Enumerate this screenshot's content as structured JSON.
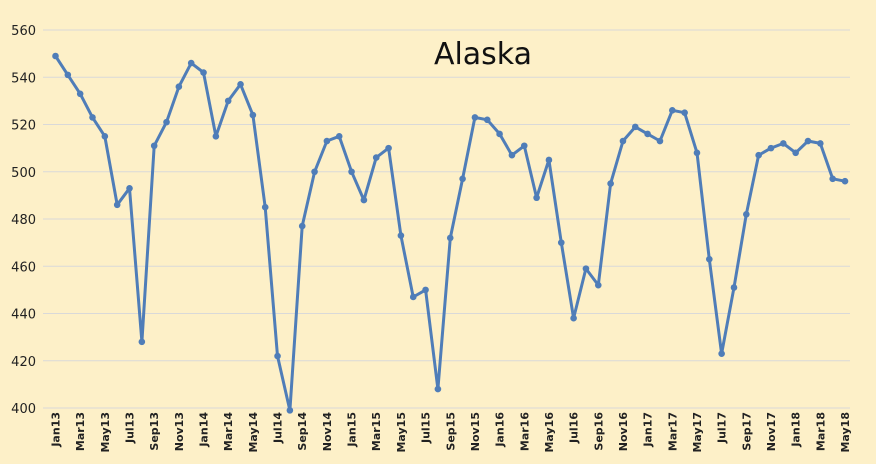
{
  "chart_data": {
    "type": "line",
    "title": "Alaska",
    "xlabel": "",
    "ylabel": "",
    "ylim": [
      400,
      560
    ],
    "yticks": [
      400,
      420,
      440,
      460,
      480,
      500,
      520,
      540,
      560
    ],
    "grid": "horizontal",
    "x": [
      "Jan13",
      "Feb13",
      "Mar13",
      "Apr13",
      "May13",
      "Jun13",
      "Jul13",
      "Aug13",
      "Sep13",
      "Oct13",
      "Nov13",
      "Dec13",
      "Jan14",
      "Feb14",
      "Mar14",
      "Apr14",
      "May14",
      "Jun14",
      "Jul14",
      "Aug14",
      "Sep14",
      "Oct14",
      "Nov14",
      "Dec14",
      "Jan15",
      "Feb15",
      "Mar15",
      "Apr15",
      "May15",
      "Jun15",
      "Jul15",
      "Aug15",
      "Sep15",
      "Oct15",
      "Nov15",
      "Dec15",
      "Jan16",
      "Feb16",
      "Mar16",
      "Apr16",
      "May16",
      "Jun16",
      "Jul16",
      "Aug16",
      "Sep16",
      "Oct16",
      "Nov16",
      "Dec16",
      "Jan17",
      "Feb17",
      "Mar17",
      "Apr17",
      "May17",
      "Jun17",
      "Jul17",
      "Aug17",
      "Sep17",
      "Oct17",
      "Nov17",
      "Dec17",
      "Jan18",
      "Feb18",
      "Mar18",
      "Apr18",
      "May18"
    ],
    "xtick_labels": [
      "Jan13",
      "Mar13",
      "May13",
      "Jul13",
      "Sep13",
      "Nov13",
      "Jan14",
      "Mar14",
      "May14",
      "Jul14",
      "Sep14",
      "Nov14",
      "Jan15",
      "Mar15",
      "May15",
      "Jul15",
      "Sep15",
      "Nov15",
      "Jan16",
      "Mar16",
      "May16",
      "Jul16",
      "Sep16",
      "Nov16",
      "Jan17",
      "Mar17",
      "May17",
      "Jul17",
      "Sep17",
      "Nov17",
      "Jan18",
      "Mar18",
      "May18"
    ],
    "series": [
      {
        "color": "#4f7db8",
        "values": [
          549,
          541,
          533,
          523,
          515,
          486,
          493,
          428,
          511,
          521,
          536,
          546,
          542,
          515,
          530,
          537,
          524,
          485,
          422,
          399,
          477,
          500,
          513,
          515,
          500,
          488,
          506,
          510,
          473,
          447,
          450,
          408,
          472,
          497,
          523,
          522,
          516,
          507,
          511,
          489,
          505,
          470,
          438,
          459,
          452,
          495,
          513,
          519,
          516,
          513,
          526,
          525,
          508,
          463,
          423,
          451,
          482,
          507,
          510,
          512,
          508,
          513,
          512,
          497,
          496
        ]
      }
    ]
  }
}
